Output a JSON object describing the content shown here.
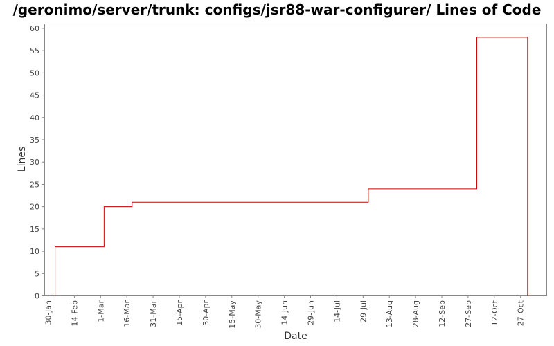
{
  "chart_data": {
    "type": "line",
    "title": "/geronimo/server/trunk: configs/jsr88-war-configurer/ Lines of Code",
    "xlabel": "Date",
    "ylabel": "Lines",
    "x_tick_labels": [
      "30-Jan",
      "14-Feb",
      "1-Mar",
      "16-Mar",
      "31-Mar",
      "15-Apr",
      "30-Apr",
      "15-May",
      "30-May",
      "14-Jun",
      "29-Jun",
      "14-Jul",
      "29-Jul",
      "13-Aug",
      "28-Aug",
      "12-Sep",
      "27-Sep",
      "12-Oct",
      "27-Oct"
    ],
    "y_ticks": [
      0,
      5,
      10,
      15,
      20,
      25,
      30,
      35,
      40,
      45,
      50,
      55,
      60
    ],
    "ylim": [
      0,
      61
    ],
    "x_start": "30-Jan",
    "x_tick_interval_days": 15,
    "xlim_days": [
      0,
      274
    ],
    "step": "post",
    "line_color": "#cc0000",
    "grid": false,
    "series": [
      {
        "name": "",
        "points": [
          {
            "date": "3-Feb",
            "day": 4,
            "lines": 0
          },
          {
            "date": "3-Feb",
            "day": 4,
            "lines": 11
          },
          {
            "date": "3-Mar",
            "day": 32,
            "lines": 20
          },
          {
            "date": "19-Mar",
            "day": 48,
            "lines": 21
          },
          {
            "date": "1-Aug",
            "day": 183,
            "lines": 24
          },
          {
            "date": "2-Oct",
            "day": 245,
            "lines": 58
          },
          {
            "date": "31-Oct",
            "day": 274,
            "lines": 58
          },
          {
            "date": "31-Oct",
            "day": 274,
            "lines": 0
          }
        ]
      }
    ]
  }
}
